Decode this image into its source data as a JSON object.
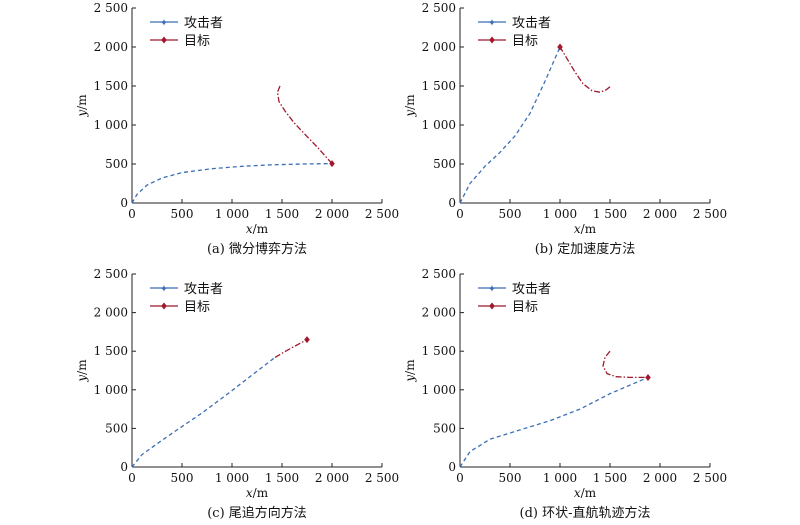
{
  "chart_data": [
    {
      "type": "line",
      "caption": "(a) 微分博弈方法",
      "xlabel": "x/m",
      "ylabel": "y/m",
      "xlim": [
        0,
        2500
      ],
      "ylim": [
        0,
        2500
      ],
      "xticks": [
        0,
        500,
        1000,
        1500,
        2000,
        2500
      ],
      "yticks": [
        0,
        500,
        1000,
        1500,
        2000,
        2500
      ],
      "xtick_labels": [
        "0",
        "500",
        "1 000",
        "1 500",
        "2 000",
        "2 500"
      ],
      "ytick_labels": [
        "0",
        "500",
        "1 000",
        "1 500",
        "2 000",
        "2 500"
      ],
      "legend": {
        "position": "top-left",
        "entries": [
          "攻击者",
          "目标"
        ]
      },
      "series": [
        {
          "name": "攻击者",
          "color": "#3a6fb5",
          "style": "dashed",
          "marker": "star-end",
          "x": [
            0,
            50,
            150,
            300,
            500,
            800,
            1100,
            1400,
            1700,
            2000
          ],
          "y": [
            0,
            110,
            230,
            320,
            390,
            440,
            470,
            490,
            500,
            505
          ]
        },
        {
          "name": "目标",
          "color": "#a0182e",
          "style": "dashdot",
          "marker": "diamond-end",
          "x": [
            1480,
            1455,
            1470,
            1530,
            1620,
            1730,
            1850,
            2000
          ],
          "y": [
            1500,
            1420,
            1300,
            1180,
            1030,
            880,
            720,
            505
          ]
        }
      ]
    },
    {
      "type": "line",
      "caption": "(b) 定加速度方法",
      "xlabel": "x/m",
      "ylabel": "y/m",
      "xlim": [
        0,
        2500
      ],
      "ylim": [
        0,
        2500
      ],
      "xticks": [
        0,
        500,
        1000,
        1500,
        2000,
        2500
      ],
      "yticks": [
        0,
        500,
        1000,
        1500,
        2000,
        2500
      ],
      "xtick_labels": [
        "0",
        "500",
        "1 000",
        "1 500",
        "2 000",
        "2 500"
      ],
      "ytick_labels": [
        "0",
        "500",
        "1 000",
        "1 500",
        "2 000",
        "2 500"
      ],
      "legend": {
        "position": "top-left",
        "entries": [
          "攻击者",
          "目标"
        ]
      },
      "series": [
        {
          "name": "攻击者",
          "color": "#3a6fb5",
          "style": "dashed",
          "marker": "star-end",
          "x": [
            0,
            100,
            250,
            400,
            550,
            700,
            850,
            1000
          ],
          "y": [
            0,
            250,
            470,
            650,
            860,
            1150,
            1560,
            2000
          ]
        },
        {
          "name": "目标",
          "color": "#a0182e",
          "style": "dashdot",
          "marker": "diamond-end",
          "x": [
            1500,
            1460,
            1400,
            1320,
            1230,
            1150,
            1080,
            1000
          ],
          "y": [
            1490,
            1450,
            1420,
            1440,
            1530,
            1680,
            1830,
            2000
          ]
        }
      ]
    },
    {
      "type": "line",
      "caption": "(c) 尾追方向方法",
      "xlabel": "x/m",
      "ylabel": "y/m",
      "xlim": [
        0,
        2500
      ],
      "ylim": [
        0,
        2500
      ],
      "xticks": [
        0,
        500,
        1000,
        1500,
        2000,
        2500
      ],
      "yticks": [
        0,
        500,
        1000,
        1500,
        2000,
        2500
      ],
      "xtick_labels": [
        "0",
        "500",
        "1 000",
        "1 500",
        "2 000",
        "2 500"
      ],
      "ytick_labels": [
        "0",
        "500",
        "1 000",
        "1 500",
        "2 000",
        "2 500"
      ],
      "legend": {
        "position": "top-left",
        "entries": [
          "攻击者",
          "目标"
        ]
      },
      "series": [
        {
          "name": "攻击者",
          "color": "#3a6fb5",
          "style": "dashed",
          "marker": "star-end",
          "x": [
            0,
            100,
            250,
            450,
            700,
            950,
            1200,
            1430
          ],
          "y": [
            0,
            160,
            300,
            480,
            700,
            940,
            1190,
            1420
          ]
        },
        {
          "name": "目标",
          "color": "#a0182e",
          "style": "dashdot",
          "marker": "diamond-end",
          "x": [
            1430,
            1550,
            1650,
            1750
          ],
          "y": [
            1420,
            1510,
            1580,
            1650
          ]
        }
      ]
    },
    {
      "type": "line",
      "caption": "(d) 环状-直航轨迹方法",
      "xlabel": "x/m",
      "ylabel": "y/m",
      "xlim": [
        0,
        2500
      ],
      "ylim": [
        0,
        2500
      ],
      "xticks": [
        0,
        500,
        1000,
        1500,
        2000,
        2500
      ],
      "yticks": [
        0,
        500,
        1000,
        1500,
        2000,
        2500
      ],
      "xtick_labels": [
        "0",
        "500",
        "1 000",
        "1 500",
        "2 000",
        "2 500"
      ],
      "ytick_labels": [
        "0",
        "500",
        "1 000",
        "1 500",
        "2 000",
        "2 500"
      ],
      "legend": {
        "position": "top-left",
        "entries": [
          "攻击者",
          "目标"
        ]
      },
      "series": [
        {
          "name": "攻击者",
          "color": "#3a6fb5",
          "style": "dashed",
          "marker": "star-end",
          "x": [
            0,
            100,
            300,
            600,
            900,
            1200,
            1500,
            1880
          ],
          "y": [
            0,
            200,
            360,
            480,
            600,
            750,
            950,
            1160
          ]
        },
        {
          "name": "目标",
          "color": "#a0182e",
          "style": "dashdot",
          "marker": "diamond-end",
          "x": [
            1500,
            1450,
            1430,
            1470,
            1560,
            1700,
            1880
          ],
          "y": [
            1500,
            1420,
            1310,
            1210,
            1170,
            1160,
            1160
          ]
        }
      ]
    }
  ]
}
